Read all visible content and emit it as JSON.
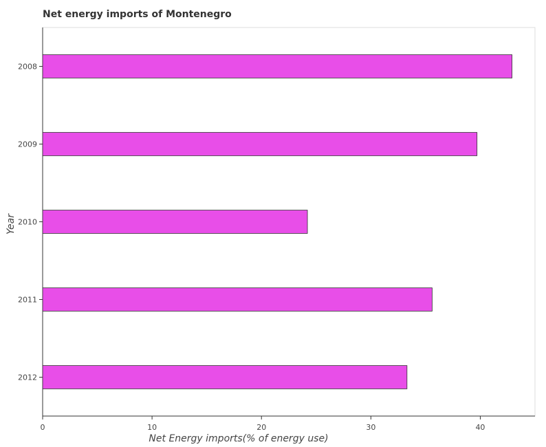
{
  "chart_data": {
    "type": "bar",
    "orientation": "horizontal",
    "title": "Net energy imports of Montenegro",
    "xlabel": "Net Energy imports(% of energy use)",
    "ylabel": "Year",
    "categories": [
      "2008",
      "2009",
      "2010",
      "2011",
      "2012"
    ],
    "values": [
      42.9,
      39.7,
      24.2,
      35.6,
      33.3
    ],
    "xlim": [
      0,
      45
    ],
    "xticks": [
      0,
      10,
      20,
      30,
      40
    ],
    "grid": false,
    "bar_color": "#e84ee8",
    "bar_edge_color": "#333333"
  }
}
